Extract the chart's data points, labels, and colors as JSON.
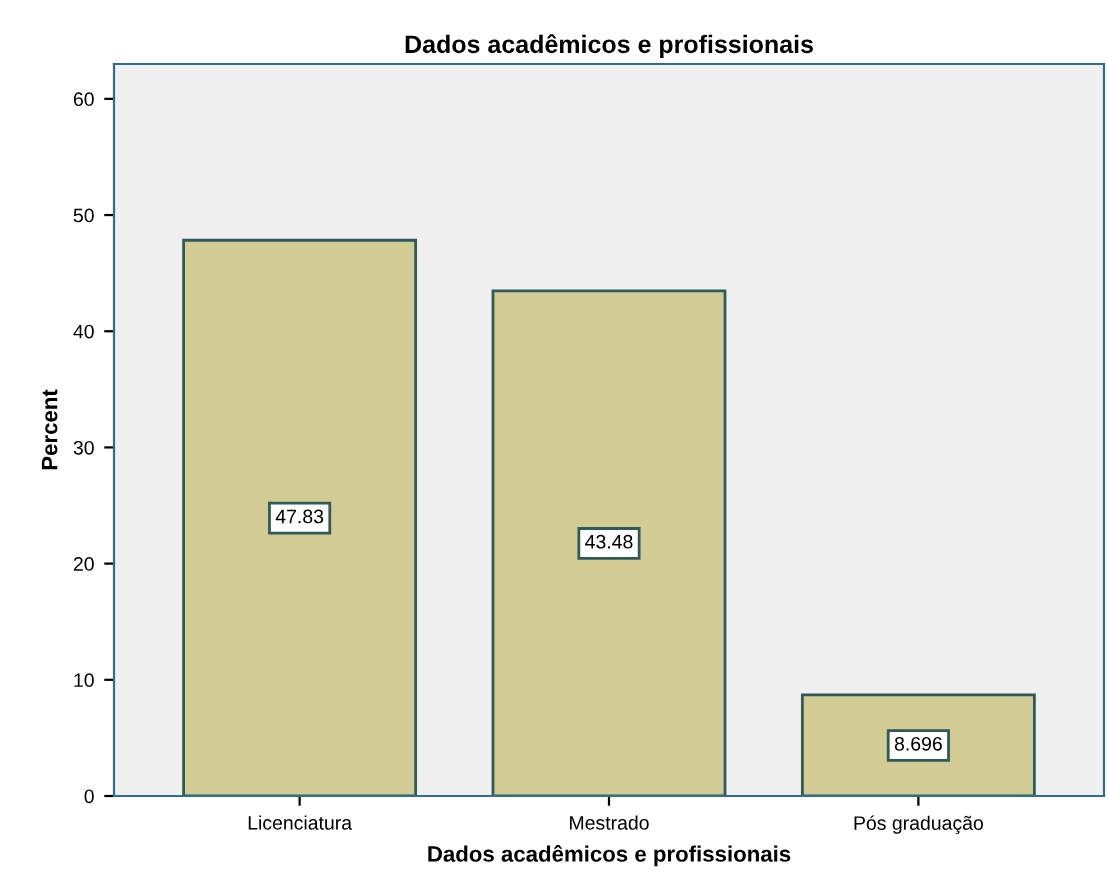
{
  "chart_data": {
    "type": "bar",
    "title": "Dados acadêmicos e profissionais",
    "xlabel": "Dados acadêmicos e profissionais",
    "ylabel": "Percent",
    "categories": [
      "Licenciatura",
      "Mestrado",
      "Pós graduação"
    ],
    "values": [
      47.83,
      43.48,
      8.696
    ],
    "color": "#d2cc94",
    "ylim": [
      0,
      63
    ],
    "yticks": [
      0,
      10,
      20,
      30,
      40,
      50,
      60
    ],
    "grid": false,
    "data_labels": true
  }
}
